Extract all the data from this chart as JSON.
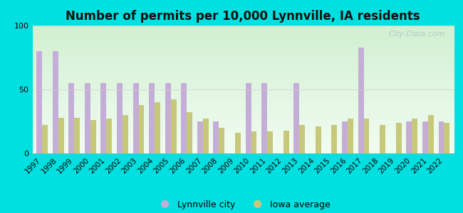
{
  "title": "Number of permits per 10,000 Lynnville, IA residents",
  "years": [
    1997,
    1998,
    1999,
    2000,
    2001,
    2002,
    2003,
    2004,
    2005,
    2006,
    2007,
    2008,
    2009,
    2010,
    2011,
    2012,
    2013,
    2014,
    2015,
    2016,
    2017,
    2018,
    2019,
    2020,
    2021,
    2022
  ],
  "lynnville": [
    80,
    80,
    55,
    55,
    55,
    55,
    55,
    55,
    55,
    55,
    25,
    25,
    0,
    55,
    55,
    0,
    55,
    0,
    0,
    25,
    83,
    0,
    0,
    25,
    25,
    25
  ],
  "iowa_avg": [
    22,
    28,
    28,
    26,
    27,
    30,
    38,
    40,
    42,
    32,
    27,
    20,
    16,
    17,
    17,
    18,
    22,
    21,
    22,
    27,
    27,
    22,
    24,
    27,
    30,
    24
  ],
  "lynnville_color": "#c4aed8",
  "iowa_color": "#c8c87a",
  "background_outer": "#00e0e0",
  "background_inner_top": "#d8f0d0",
  "background_inner_bot": "#f0f8f0",
  "ylim": [
    0,
    100
  ],
  "title_fontsize": 12,
  "bar_width": 0.35,
  "legend_lynnville": "Lynnville city",
  "legend_iowa": "Iowa average"
}
